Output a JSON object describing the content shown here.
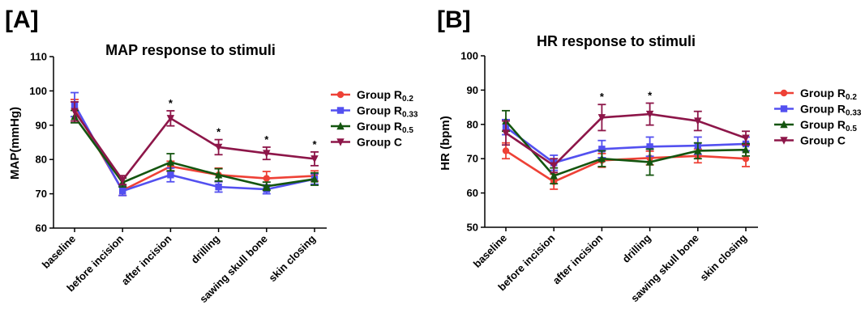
{
  "colors": {
    "Group R0.2": "#ee4136",
    "Group R0.33": "#5350f0",
    "Group R0.5": "#14550f",
    "Group C": "#8d1649"
  },
  "legend": [
    {
      "base": "Group R",
      "sub": "0.2",
      "series": "Group R0.2",
      "marker": "circle"
    },
    {
      "base": "Group R",
      "sub": "0.33",
      "series": "Group R0.33",
      "marker": "square"
    },
    {
      "base": "Group R",
      "sub": "0.5",
      "series": "Group R0.5",
      "marker": "triangle-up"
    },
    {
      "base": "Group C",
      "sub": "",
      "series": "Group C",
      "marker": "triangle-down"
    }
  ],
  "chart_data": [
    {
      "type": "line",
      "panel_label": "[A]",
      "title": "MAP response to stimuli",
      "xlabel": "",
      "ylabel": "MAP(mmHg)",
      "ylim": [
        60,
        110
      ],
      "yticks": [
        60,
        70,
        80,
        90,
        100,
        110
      ],
      "categories": [
        "baseline",
        "before incision",
        "after incision",
        "drilling",
        "sawing skull bone",
        "skin closing"
      ],
      "significance": [
        "",
        "",
        "*",
        "*",
        "*",
        "*"
      ],
      "legend_position": "right",
      "series": [
        {
          "name": "Group R0.2",
          "values": [
            95,
            71,
            78,
            75.5,
            74.5,
            75.2
          ],
          "errors": [
            2.5,
            1.5,
            1.5,
            2,
            2,
            1.5
          ]
        },
        {
          "name": "Group R0.33",
          "values": [
            96,
            70.8,
            75.5,
            72,
            71.3,
            74.3
          ],
          "errors": [
            3.5,
            1.3,
            2,
            1.5,
            1.3,
            1.5
          ]
        },
        {
          "name": "Group R0.5",
          "values": [
            92.5,
            73.3,
            79.2,
            75.5,
            72.2,
            74.3
          ],
          "errors": [
            1.8,
            1.3,
            2.5,
            1.8,
            1.2,
            1.8
          ]
        },
        {
          "name": "Group C",
          "values": [
            94,
            74,
            92,
            83.6,
            81.8,
            80.2
          ],
          "errors": [
            2.8,
            1.3,
            2.2,
            2.2,
            1.8,
            2
          ]
        }
      ]
    },
    {
      "type": "line",
      "panel_label": "[B]",
      "title": "HR response to stimuli",
      "xlabel": "",
      "ylabel": "HR (bpm)",
      "ylim": [
        50,
        100
      ],
      "yticks": [
        50,
        60,
        70,
        80,
        90,
        100
      ],
      "categories": [
        "baseline",
        "before incision",
        "after incision",
        "drilling",
        "sawing skull bone",
        "skin closing"
      ],
      "significance": [
        "",
        "",
        "*",
        "*",
        "",
        ""
      ],
      "legend_position": "right",
      "series": [
        {
          "name": "Group R0.2",
          "values": [
            72.3,
            63.3,
            69.5,
            70.2,
            70.8,
            70
          ],
          "errors": [
            2.3,
            2.2,
            2,
            2,
            2,
            2.3
          ]
        },
        {
          "name": "Group R0.33",
          "values": [
            79.2,
            68.8,
            72.8,
            73.5,
            73.8,
            74.3
          ],
          "errors": [
            2.2,
            2.2,
            2.5,
            2.8,
            2.5,
            2
          ]
        },
        {
          "name": "Group R0.5",
          "values": [
            81,
            65,
            70,
            69,
            72.3,
            72.6
          ],
          "errors": [
            3,
            2.3,
            2.3,
            3.8,
            2.3,
            1.8
          ]
        },
        {
          "name": "Group C",
          "values": [
            77.5,
            68,
            82,
            83,
            81,
            76
          ],
          "errors": [
            3.5,
            2,
            3.8,
            3.2,
            2.8,
            2
          ]
        }
      ]
    }
  ]
}
